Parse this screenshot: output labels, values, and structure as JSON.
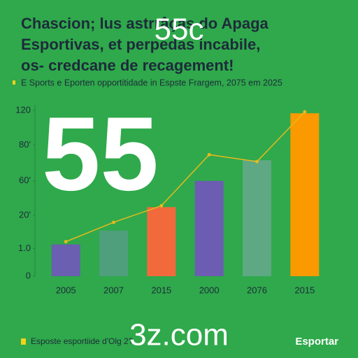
{
  "chart_data": {
    "type": "bar",
    "title": [
      "Chascion; lus astrrâças do Apaga",
      "Esportivas, et perpedas incabile,",
      "os- credcane de recagement!"
    ],
    "subtitle": "E Sports e Eporten opportitidade in Espste Frargem, 2075 em 2025",
    "overlay_texts": [
      "55c",
      "55",
      "3z.com"
    ],
    "footer": [
      "Esposte esportiide d'Olg 2?",
      "Esportar"
    ],
    "categories": [
      "2005",
      "2007",
      "2015",
      "2000",
      "2076",
      "2015"
    ],
    "values": [
      23,
      33,
      50,
      69,
      84,
      118
    ],
    "colors": [
      "#6a5fb0",
      "#4f9e7c",
      "#f26a3c",
      "#6c5db2",
      "#5ea883",
      "#fa9900"
    ],
    "line": {
      "color": "#e6b91e",
      "values": [
        25,
        39,
        51,
        88,
        83,
        119
      ]
    },
    "ylim": [
      0,
      120
    ],
    "yticks": [
      {
        "value": 0,
        "label": "0"
      },
      {
        "value": 20,
        "label": "1.0"
      },
      {
        "value": 44,
        "label": "20'"
      },
      {
        "value": 69,
        "label": "60'"
      },
      {
        "value": 95,
        "label": "80'"
      },
      120
    ],
    "grid": false
  }
}
